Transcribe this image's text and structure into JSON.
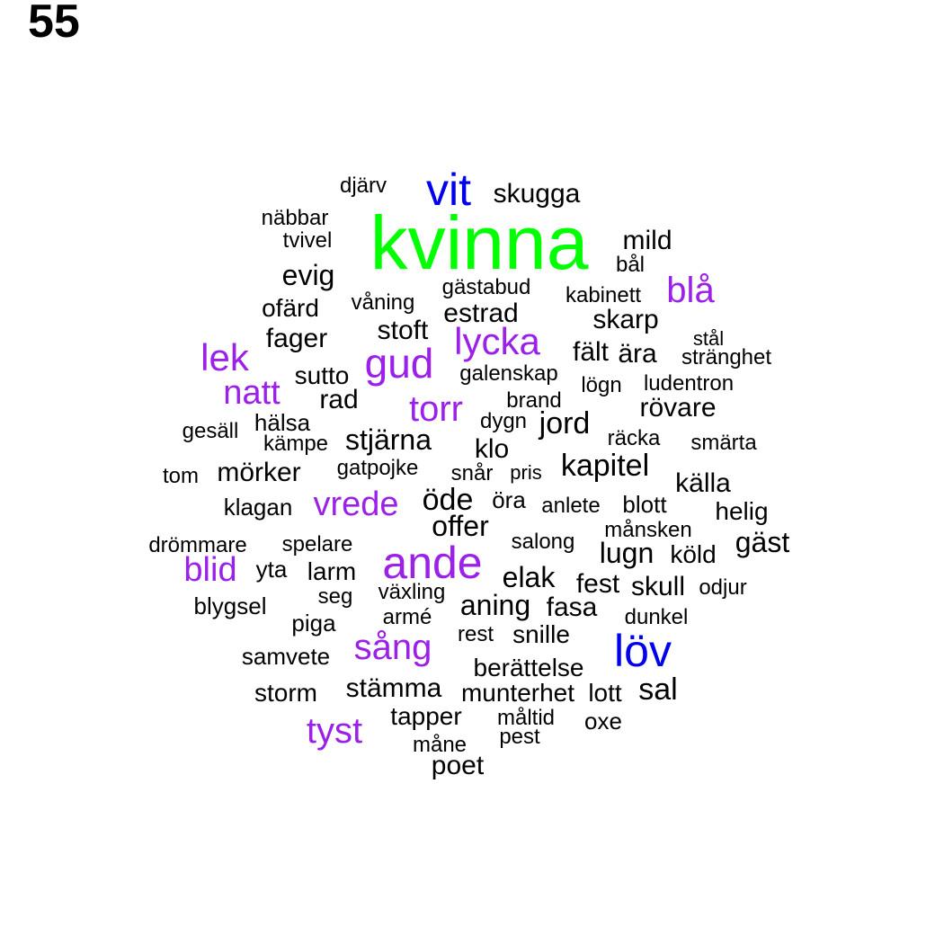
{
  "panel_number": "55",
  "colors": {
    "high": "#00ff00",
    "mid": "#0000ee",
    "low": "#9b20e8",
    "base": "#000000"
  },
  "words": [
    {
      "text": "kvinna",
      "tier": "high"
    },
    {
      "text": "vit",
      "tier": "mid"
    },
    {
      "text": "löv",
      "tier": "mid"
    },
    {
      "text": "ande",
      "tier": "low"
    },
    {
      "text": "gud",
      "tier": "low"
    },
    {
      "text": "lycka",
      "tier": "low"
    },
    {
      "text": "lek",
      "tier": "low"
    },
    {
      "text": "blå",
      "tier": "low"
    },
    {
      "text": "sång",
      "tier": "low"
    },
    {
      "text": "torr",
      "tier": "low"
    },
    {
      "text": "natt",
      "tier": "low"
    },
    {
      "text": "vrede",
      "tier": "low"
    },
    {
      "text": "blid",
      "tier": "low"
    },
    {
      "text": "tyst",
      "tier": "low"
    },
    {
      "text": "skugga",
      "tier": "base"
    },
    {
      "text": "djärv",
      "tier": "base"
    },
    {
      "text": "näbbar",
      "tier": "base"
    },
    {
      "text": "tvivel",
      "tier": "base"
    },
    {
      "text": "mild",
      "tier": "base"
    },
    {
      "text": "bål",
      "tier": "base"
    },
    {
      "text": "evig",
      "tier": "base"
    },
    {
      "text": "gästabud",
      "tier": "base"
    },
    {
      "text": "kabinett",
      "tier": "base"
    },
    {
      "text": "ofärd",
      "tier": "base"
    },
    {
      "text": "våning",
      "tier": "base"
    },
    {
      "text": "estrad",
      "tier": "base"
    },
    {
      "text": "skarp",
      "tier": "base"
    },
    {
      "text": "fager",
      "tier": "base"
    },
    {
      "text": "stoft",
      "tier": "base"
    },
    {
      "text": "stål",
      "tier": "base"
    },
    {
      "text": "fält",
      "tier": "base"
    },
    {
      "text": "ära",
      "tier": "base"
    },
    {
      "text": "stränghet",
      "tier": "base"
    },
    {
      "text": "sutto",
      "tier": "base"
    },
    {
      "text": "galenskap",
      "tier": "base"
    },
    {
      "text": "lögn",
      "tier": "base"
    },
    {
      "text": "ludentron",
      "tier": "base"
    },
    {
      "text": "rad",
      "tier": "base"
    },
    {
      "text": "brand",
      "tier": "base"
    },
    {
      "text": "rövare",
      "tier": "base"
    },
    {
      "text": "gesäll",
      "tier": "base"
    },
    {
      "text": "hälsa",
      "tier": "base"
    },
    {
      "text": "dygn",
      "tier": "base"
    },
    {
      "text": "jord",
      "tier": "base"
    },
    {
      "text": "kämpe",
      "tier": "base"
    },
    {
      "text": "stjärna",
      "tier": "base"
    },
    {
      "text": "räcka",
      "tier": "base"
    },
    {
      "text": "smärta",
      "tier": "base"
    },
    {
      "text": "klo",
      "tier": "base"
    },
    {
      "text": "tom",
      "tier": "base"
    },
    {
      "text": "mörker",
      "tier": "base"
    },
    {
      "text": "gatpojke",
      "tier": "base"
    },
    {
      "text": "snår",
      "tier": "base"
    },
    {
      "text": "pris",
      "tier": "base"
    },
    {
      "text": "kapitel",
      "tier": "base"
    },
    {
      "text": "källa",
      "tier": "base"
    },
    {
      "text": "klagan",
      "tier": "base"
    },
    {
      "text": "öde",
      "tier": "base"
    },
    {
      "text": "öra",
      "tier": "base"
    },
    {
      "text": "anlete",
      "tier": "base"
    },
    {
      "text": "blott",
      "tier": "base"
    },
    {
      "text": "helig",
      "tier": "base"
    },
    {
      "text": "offer",
      "tier": "base"
    },
    {
      "text": "månsken",
      "tier": "base"
    },
    {
      "text": "drömmare",
      "tier": "base"
    },
    {
      "text": "spelare",
      "tier": "base"
    },
    {
      "text": "salong",
      "tier": "base"
    },
    {
      "text": "lugn",
      "tier": "base"
    },
    {
      "text": "köld",
      "tier": "base"
    },
    {
      "text": "gäst",
      "tier": "base"
    },
    {
      "text": "yta",
      "tier": "base"
    },
    {
      "text": "larm",
      "tier": "base"
    },
    {
      "text": "elak",
      "tier": "base"
    },
    {
      "text": "fest",
      "tier": "base"
    },
    {
      "text": "skull",
      "tier": "base"
    },
    {
      "text": "odjur",
      "tier": "base"
    },
    {
      "text": "seg",
      "tier": "base"
    },
    {
      "text": "växling",
      "tier": "base"
    },
    {
      "text": "aning",
      "tier": "base"
    },
    {
      "text": "fasa",
      "tier": "base"
    },
    {
      "text": "blygsel",
      "tier": "base"
    },
    {
      "text": "piga",
      "tier": "base"
    },
    {
      "text": "armé",
      "tier": "base"
    },
    {
      "text": "dunkel",
      "tier": "base"
    },
    {
      "text": "rest",
      "tier": "base"
    },
    {
      "text": "snille",
      "tier": "base"
    },
    {
      "text": "samvete",
      "tier": "base"
    },
    {
      "text": "berättelse",
      "tier": "base"
    },
    {
      "text": "storm",
      "tier": "base"
    },
    {
      "text": "stämma",
      "tier": "base"
    },
    {
      "text": "munterhet",
      "tier": "base"
    },
    {
      "text": "lott",
      "tier": "base"
    },
    {
      "text": "sal",
      "tier": "base"
    },
    {
      "text": "tapper",
      "tier": "base"
    },
    {
      "text": "måltid",
      "tier": "base"
    },
    {
      "text": "oxe",
      "tier": "base"
    },
    {
      "text": "pest",
      "tier": "base"
    },
    {
      "text": "måne",
      "tier": "base"
    },
    {
      "text": "poet",
      "tier": "base"
    }
  ]
}
